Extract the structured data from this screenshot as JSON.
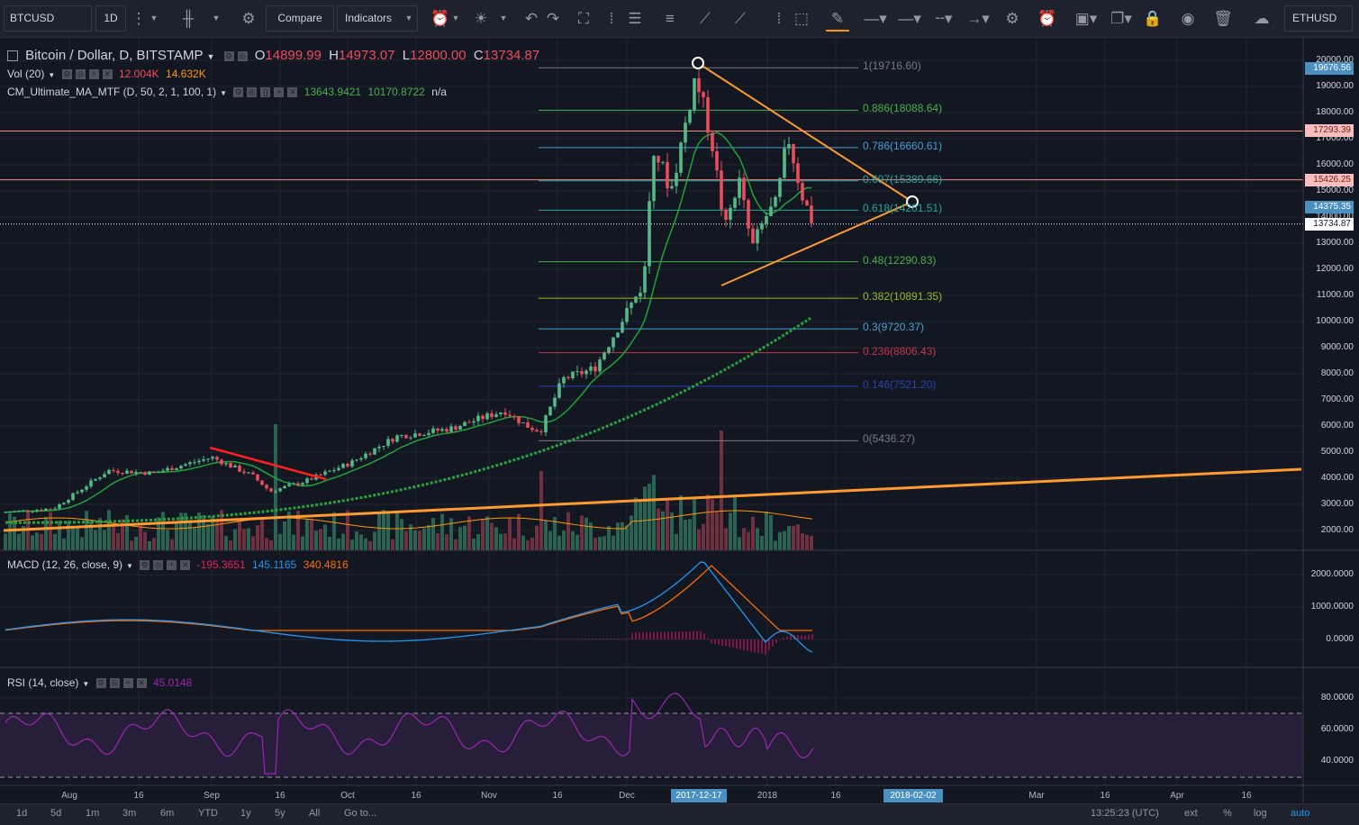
{
  "toolbar": {
    "symbol": "BTCUSD",
    "interval": "1D",
    "compare_label": "Compare",
    "indicators_label": "Indicators",
    "right_symbol": "ETHUSD"
  },
  "legend": {
    "title": "Bitcoin / Dollar, D, BITSTAMP",
    "o_label": "O",
    "o_value": "14899.99",
    "h_label": "H",
    "h_value": "14973.07",
    "l_label": "L",
    "l_value": "12800.00",
    "c_label": "C",
    "c_value": "13734.87",
    "vol_label": "Vol (20)",
    "vol_value1": "12.004K",
    "vol_value2": "14.632K",
    "ma_label": "CM_Ultimate_MA_MTF (D, 50, 2, 1, 100, 1)",
    "ma_value1": "13643.9421",
    "ma_value2": "10170.8722",
    "ma_value3": "n/a"
  },
  "fib_levels": [
    {
      "label": "1(19716.60)",
      "price": 19716.6,
      "color": "#787b86"
    },
    {
      "label": "0.886(18088.64)",
      "price": 18088.64,
      "color": "#4caf50"
    },
    {
      "label": "0.786(16660.61)",
      "price": 16660.61,
      "color": "#4a9fd4"
    },
    {
      "label": "0.697(15389.66)",
      "price": 15389.66,
      "color": "#26a69a"
    },
    {
      "label": "0.618(14261.51)",
      "price": 14261.51,
      "color": "#26a69a"
    },
    {
      "label": "0.48(12290.83)",
      "price": 12290.83,
      "color": "#4caf50"
    },
    {
      "label": "0.382(10891.35)",
      "price": 10891.35,
      "color": "#9cb62b"
    },
    {
      "label": "0.3(9720.37)",
      "price": 9720.37,
      "color": "#4a9fd4"
    },
    {
      "label": "0.236(8806.43)",
      "price": 8806.43,
      "color": "#c0394b"
    },
    {
      "label": "0.146(7521.20)",
      "price": 7521.2,
      "color": "#2941b5"
    },
    {
      "label": "0(5436.27)",
      "price": 5436.27,
      "color": "#787b86"
    }
  ],
  "price_axis": [
    "20000.00",
    "19000.00",
    "18000.00",
    "17000.00",
    "16000.00",
    "15000.00",
    "14000.00",
    "13000.00",
    "12000.00",
    "11000.00",
    "10000.00",
    "9000.00",
    "8000.00",
    "7000.00",
    "6000.00",
    "5000.00",
    "4000.00",
    "3000.00",
    "2000.00"
  ],
  "price_tags": [
    {
      "text": "19676.56",
      "price": 19676.56,
      "bg": "#4a90c2",
      "color": "#ffffff"
    },
    {
      "text": "17293.39",
      "price": 17293.39,
      "bg": "#f8bdbd",
      "color": "#7a1c1c"
    },
    {
      "text": "15426.25",
      "price": 15426.25,
      "bg": "#f8bdbd",
      "color": "#7a1c1c"
    },
    {
      "text": "14375.35",
      "price": 14375.35,
      "bg": "#4a90c2",
      "color": "#ffffff"
    },
    {
      "text": "13734.87",
      "price": 13734.87,
      "bg": "#ffffff",
      "color": "#131722"
    }
  ],
  "macd": {
    "label": "MACD (12, 26, close, 9)",
    "v1": "-195.3651",
    "v2": "145.1165",
    "v3": "340.4816",
    "axis": [
      "2000.0000",
      "1000.0000",
      "0.0000"
    ]
  },
  "rsi": {
    "label": "RSI (14, close)",
    "value": "45.0148",
    "axis": [
      "80.0000",
      "60.0000",
      "40.0000"
    ]
  },
  "time_axis": [
    {
      "label": "Aug",
      "x": 77
    },
    {
      "label": "16",
      "x": 154
    },
    {
      "label": "Sep",
      "x": 235
    },
    {
      "label": "16",
      "x": 311
    },
    {
      "label": "Oct",
      "x": 386
    },
    {
      "label": "16",
      "x": 462
    },
    {
      "label": "Nov",
      "x": 543
    },
    {
      "label": "16",
      "x": 619
    },
    {
      "label": "Dec",
      "x": 696
    },
    {
      "label": "2018",
      "x": 852
    },
    {
      "label": "16",
      "x": 928
    },
    {
      "label": "Mar",
      "x": 1151
    },
    {
      "label": "16",
      "x": 1227
    },
    {
      "label": "Apr",
      "x": 1307
    },
    {
      "label": "16",
      "x": 1384
    }
  ],
  "time_tags": {
    "left": "2017-12-17",
    "right": "2018-02-02"
  },
  "bottom": {
    "ranges": [
      "1d",
      "5d",
      "1m",
      "3m",
      "6m",
      "YTD",
      "1y",
      "5y",
      "All"
    ],
    "goto": "Go to...",
    "clock": "13:25:23 (UTC)",
    "ext": "ext",
    "percent": "%",
    "log": "log",
    "auto": "auto"
  },
  "colors": {
    "up": "#53b987",
    "down": "#eb4d5c",
    "ma_fast": "#1fa33a",
    "ma_slow": "#2aa13f",
    "trend": "#ff9a2e",
    "macd": "#2196f3",
    "signal": "#ff6d00",
    "rsi": "#9c27b0"
  }
}
